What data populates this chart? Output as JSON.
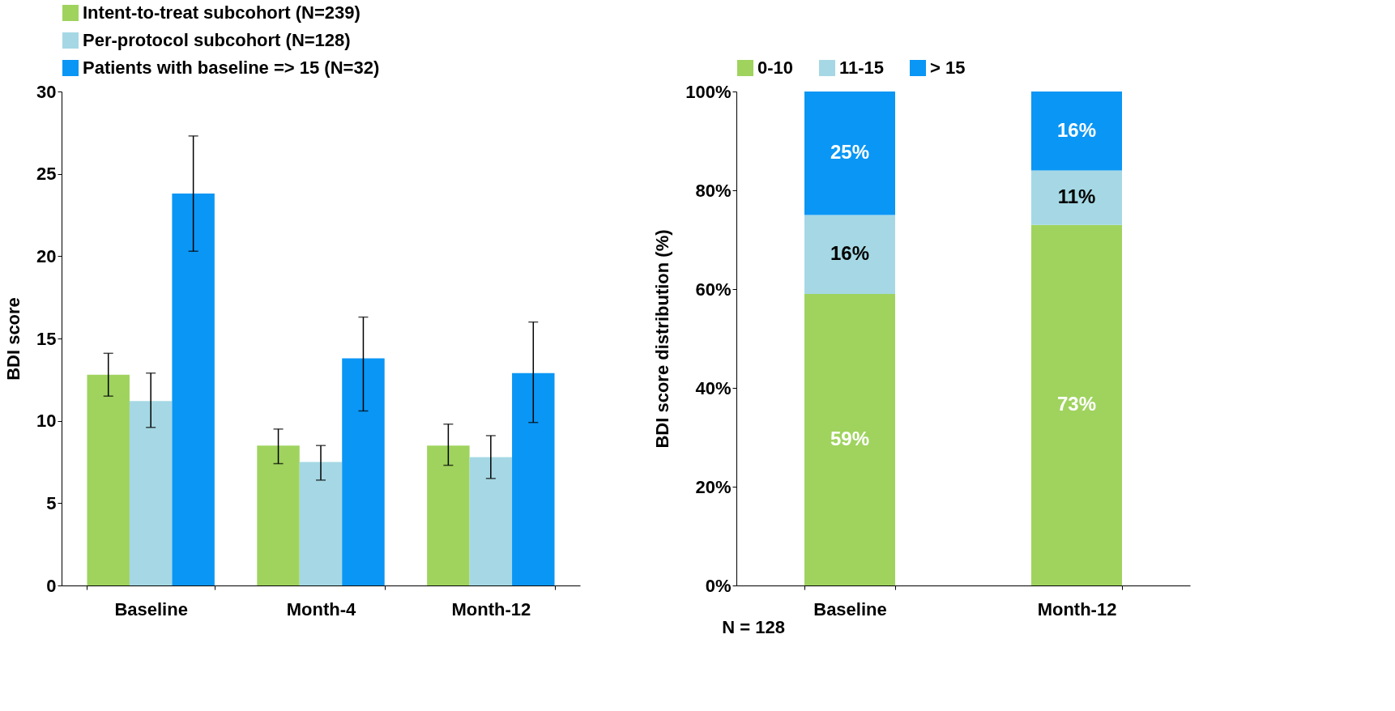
{
  "chart_data": [
    {
      "type": "bar",
      "ylabel": "BDI score",
      "categories": [
        "Baseline",
        "Month-4",
        "Month-12"
      ],
      "series": [
        {
          "name": "Intent-to-treat subcohort (N=239)",
          "color": "#9fd35e",
          "values": [
            12.8,
            8.5,
            8.5
          ],
          "errors": [
            [
              11.5,
              14.1
            ],
            [
              7.4,
              9.5
            ],
            [
              7.3,
              9.8
            ]
          ]
        },
        {
          "name": "Per-protocol subcohort (N=128)",
          "color": "#a5d8e4",
          "values": [
            11.2,
            7.5,
            7.8
          ],
          "errors": [
            [
              9.6,
              12.9
            ],
            [
              6.4,
              8.5
            ],
            [
              6.5,
              9.1
            ]
          ]
        },
        {
          "name": "Patients with baseline => 15 (N=32)",
          "color": "#0a96f5",
          "values": [
            23.8,
            13.8,
            12.9
          ],
          "errors": [
            [
              20.3,
              27.3
            ],
            [
              10.6,
              16.3
            ],
            [
              9.9,
              16.0
            ]
          ]
        }
      ],
      "ylim": [
        0,
        30
      ],
      "yticks": [
        0,
        5,
        10,
        15,
        20,
        25,
        30
      ],
      "grid": false,
      "legend": "top"
    },
    {
      "type": "bar",
      "stacked": true,
      "ylabel": "BDI score distribution (%)",
      "categories": [
        "Baseline",
        "Month-12"
      ],
      "series": [
        {
          "name": "0-10",
          "color": "#9fd35e",
          "values": [
            59,
            73
          ],
          "value_labels": [
            "59%",
            "73%"
          ]
        },
        {
          "name": "11-15",
          "color": "#a5d8e4",
          "values": [
            16,
            11
          ],
          "value_labels": [
            "16%",
            "11%"
          ]
        },
        {
          "name": "> 15",
          "color": "#0a96f5",
          "values": [
            25,
            16
          ],
          "value_labels": [
            "25%",
            "16%"
          ]
        }
      ],
      "ylim": [
        0,
        100
      ],
      "yticks": [
        {
          "value": 0,
          "label": "0%"
        },
        {
          "value": 20,
          "label": "20%"
        },
        {
          "value": 40,
          "label": "40%"
        },
        {
          "value": 60,
          "label": "60%"
        },
        {
          "value": 80,
          "label": "80%"
        },
        {
          "value": 100,
          "label": "100%"
        }
      ],
      "grid": false,
      "legend": "top",
      "annotations": [
        "N = 128"
      ]
    }
  ]
}
